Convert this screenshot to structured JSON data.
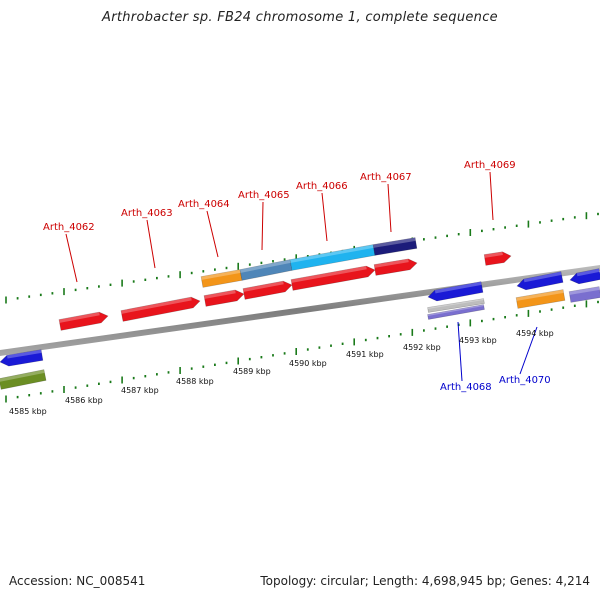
{
  "title": "Arthrobacter sp. FB24 chromosome 1, complete sequence",
  "footer": {
    "accession": "Accession: NC_008541",
    "stats": "Topology: circular; Length: 4,698,945 bp; Genes: 4,214"
  },
  "colors": {
    "forward_label": "#cc0000",
    "reverse_label": "#0000cc",
    "tick": "#1a7a1a",
    "backbone": "#8c8c8c"
  },
  "tick_labels": [
    "4585 kbp",
    "4586 kbp",
    "4587 kbp",
    "4588 kbp",
    "4589 kbp",
    "4590 kbp",
    "4591 kbp",
    "4592 kbp",
    "4593 kbp",
    "4594 kbp"
  ],
  "gene_labels_forward": [
    "Arth_4062",
    "Arth_4063",
    "Arth_4064",
    "Arth_4065",
    "Arth_4066",
    "Arth_4067",
    "Arth_4069"
  ],
  "gene_labels_reverse": [
    "Arth_4068",
    "Arth_4070"
  ]
}
